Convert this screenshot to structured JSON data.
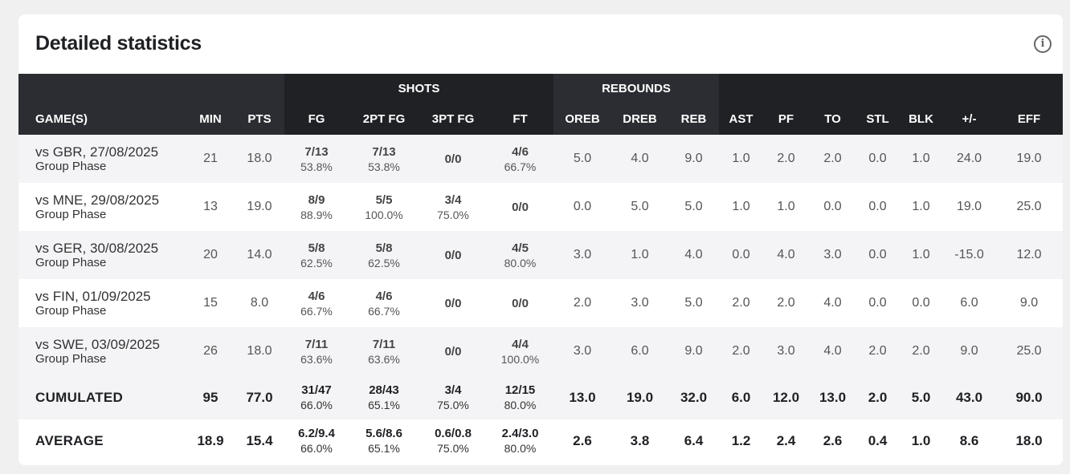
{
  "title": "Detailed statistics",
  "info_icon": "info-circle-icon",
  "groups": {
    "shots": "SHOTS",
    "rebounds": "REBOUNDS"
  },
  "columns": [
    "GAME(S)",
    "MIN",
    "PTS",
    "FG",
    "2PT FG",
    "3PT FG",
    "FT",
    "OREB",
    "DREB",
    "REB",
    "AST",
    "PF",
    "TO",
    "STL",
    "BLK",
    "+/-",
    "EFF"
  ],
  "games": [
    {
      "game": "vs GBR, 27/08/2025",
      "phase": "Group Phase",
      "min": "21",
      "pts": "18.0",
      "fg": [
        "7/13",
        "53.8%"
      ],
      "fg2": [
        "7/13",
        "53.8%"
      ],
      "fg3": [
        "0/0",
        ""
      ],
      "ft": [
        "4/6",
        "66.7%"
      ],
      "stats": [
        "5.0",
        "4.0",
        "9.0",
        "1.0",
        "2.0",
        "2.0",
        "0.0",
        "1.0",
        "24.0",
        "19.0"
      ]
    },
    {
      "game": "vs MNE, 29/08/2025",
      "phase": "Group Phase",
      "min": "13",
      "pts": "19.0",
      "fg": [
        "8/9",
        "88.9%"
      ],
      "fg2": [
        "5/5",
        "100.0%"
      ],
      "fg3": [
        "3/4",
        "75.0%"
      ],
      "ft": [
        "0/0",
        ""
      ],
      "stats": [
        "0.0",
        "5.0",
        "5.0",
        "1.0",
        "1.0",
        "0.0",
        "0.0",
        "1.0",
        "19.0",
        "25.0"
      ]
    },
    {
      "game": "vs GER, 30/08/2025",
      "phase": "Group Phase",
      "min": "20",
      "pts": "14.0",
      "fg": [
        "5/8",
        "62.5%"
      ],
      "fg2": [
        "5/8",
        "62.5%"
      ],
      "fg3": [
        "0/0",
        ""
      ],
      "ft": [
        "4/5",
        "80.0%"
      ],
      "stats": [
        "3.0",
        "1.0",
        "4.0",
        "0.0",
        "4.0",
        "3.0",
        "0.0",
        "1.0",
        "-15.0",
        "12.0"
      ]
    },
    {
      "game": "vs FIN, 01/09/2025",
      "phase": "Group Phase",
      "min": "15",
      "pts": "8.0",
      "fg": [
        "4/6",
        "66.7%"
      ],
      "fg2": [
        "4/6",
        "66.7%"
      ],
      "fg3": [
        "0/0",
        ""
      ],
      "ft": [
        "0/0",
        ""
      ],
      "stats": [
        "2.0",
        "3.0",
        "5.0",
        "2.0",
        "2.0",
        "4.0",
        "0.0",
        "0.0",
        "6.0",
        "9.0"
      ]
    },
    {
      "game": "vs SWE, 03/09/2025",
      "phase": "Group Phase",
      "min": "26",
      "pts": "18.0",
      "fg": [
        "7/11",
        "63.6%"
      ],
      "fg2": [
        "7/11",
        "63.6%"
      ],
      "fg3": [
        "0/0",
        ""
      ],
      "ft": [
        "4/4",
        "100.0%"
      ],
      "stats": [
        "3.0",
        "6.0",
        "9.0",
        "2.0",
        "3.0",
        "4.0",
        "2.0",
        "2.0",
        "9.0",
        "25.0"
      ]
    }
  ],
  "totals": [
    {
      "label": "CUMULATED",
      "min": "95",
      "pts": "77.0",
      "fg": [
        "31/47",
        "66.0%"
      ],
      "fg2": [
        "28/43",
        "65.1%"
      ],
      "fg3": [
        "3/4",
        "75.0%"
      ],
      "ft": [
        "12/15",
        "80.0%"
      ],
      "stats": [
        "13.0",
        "19.0",
        "32.0",
        "6.0",
        "12.0",
        "13.0",
        "2.0",
        "5.0",
        "43.0",
        "90.0"
      ]
    },
    {
      "label": "AVERAGE",
      "min": "18.9",
      "pts": "15.4",
      "fg": [
        "6.2/9.4",
        "66.0%"
      ],
      "fg2": [
        "5.6/8.6",
        "65.1%"
      ],
      "fg3": [
        "0.6/0.8",
        "75.0%"
      ],
      "ft": [
        "2.4/3.0",
        "80.0%"
      ],
      "stats": [
        "2.6",
        "3.8",
        "6.4",
        "1.2",
        "2.4",
        "2.6",
        "0.4",
        "1.0",
        "8.6",
        "18.0"
      ]
    }
  ]
}
